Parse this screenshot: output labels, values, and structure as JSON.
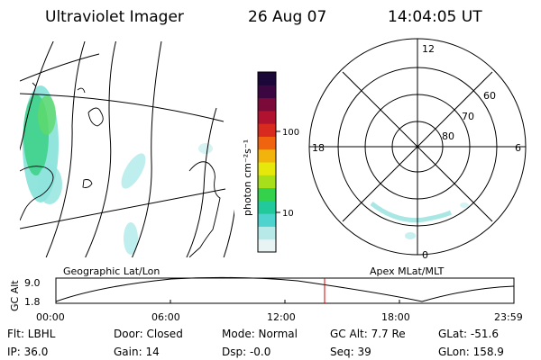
{
  "header": {
    "instrument": "Ultraviolet Imager",
    "date": "26 Aug 07",
    "time": "14:04:05 UT"
  },
  "colorbar": {
    "unit_label": "photon cm⁻²s⁻¹",
    "ticks": [
      "100",
      "10"
    ],
    "colors": [
      "#e8f4f4",
      "#b7e9e9",
      "#4fd3cf",
      "#22c99a",
      "#33d14c",
      "#a7df1a",
      "#e6e70b",
      "#f2b30d",
      "#f06410",
      "#d82a1e",
      "#b0122f",
      "#7b0a38",
      "#3c0740",
      "#1b0838"
    ]
  },
  "polar_plot": {
    "mlt_labels": [
      "12",
      "18",
      "6",
      "0"
    ],
    "mlat_labels": [
      "60",
      "70",
      "80"
    ]
  },
  "timeline": {
    "left_title": "Geographic Lat/Lon",
    "right_title": "Apex MLat/MLT",
    "y_axis_label": "GC Alt",
    "y_ticks": [
      "9.0",
      "1.8"
    ],
    "x_ticks": [
      "00:00",
      "06:00",
      "12:00",
      "18:00",
      "23:59"
    ],
    "marker_color": "#d40000"
  },
  "info": {
    "flt": "Flt: LBHL",
    "ip": "IP: 36.0",
    "door": "Door: Closed",
    "gain": "Gain: 14",
    "mode": "Mode: Normal",
    "dsp": "Dsp:    -0.0",
    "gc_alt": "GC Alt: 7.7 Re",
    "seq": "Seq: 39",
    "glat": "GLat: -51.6",
    "glon": "GLon: 158.9"
  }
}
